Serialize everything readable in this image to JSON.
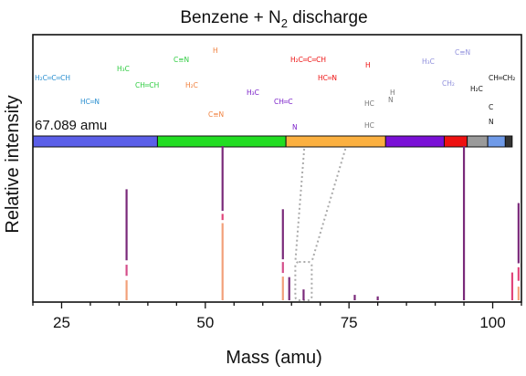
{
  "chart_data": {
    "type": "bar",
    "title": "Benzene + N",
    "title_subscript": "2",
    "title_suffix": " discharge",
    "xlabel": "Mass (amu)",
    "ylabel": "Relative intensity",
    "xlim": [
      20,
      105
    ],
    "ylim": [
      0,
      1
    ],
    "xticks": [
      25,
      50,
      75,
      100
    ],
    "highlight_label": "67.089 amu",
    "highlight_mass": 67.089,
    "composition_bar": [
      {
        "color": "#5b5fe8",
        "fraction": 0.255
      },
      {
        "color": "#22dd22",
        "fraction": 0.263
      },
      {
        "color": "#fbb040",
        "fraction": 0.204
      },
      {
        "color": "#7a10d6",
        "fraction": 0.12
      },
      {
        "color": "#ee1111",
        "fraction": 0.047
      },
      {
        "color": "#9a9a9a",
        "fraction": 0.042
      },
      {
        "color": "#6f9ae8",
        "fraction": 0.036
      },
      {
        "color": "#333333",
        "fraction": 0.014
      }
    ],
    "molecules": [
      {
        "color": "#2a8fd0",
        "lines": [
          {
            "text": "H₂C═C═CH",
            "dx": 0,
            "dy": 0
          },
          {
            "text": "HC═N",
            "dx": 50,
            "dy": 26
          }
        ]
      },
      {
        "color": "#2ecc40",
        "lines": [
          {
            "text": "H₃C",
            "dx": 0,
            "dy": 0
          },
          {
            "text": "CH═CH",
            "dx": 20,
            "dy": 18
          },
          {
            "text": "C≡N",
            "dx": 62,
            "dy": -10
          }
        ]
      },
      {
        "color": "#f07f3c",
        "lines": [
          {
            "text": "H",
            "dx": 30,
            "dy": -12
          },
          {
            "text": "H₂C",
            "dx": 0,
            "dy": 26
          },
          {
            "text": "C≡N",
            "dx": 25,
            "dy": 58
          }
        ]
      },
      {
        "color": "#7a1fc9",
        "lines": [
          {
            "text": "H₃C",
            "dx": 0,
            "dy": 0
          },
          {
            "text": "CH═C",
            "dx": 30,
            "dy": 10
          },
          {
            "text": "N",
            "dx": 50,
            "dy": 38
          }
        ]
      },
      {
        "color": "#ee1111",
        "lines": [
          {
            "text": "H₂C═C═CH",
            "dx": 0,
            "dy": 0
          },
          {
            "text": "HC═N",
            "dx": 30,
            "dy": 20
          },
          {
            "text": "H",
            "dx": 82,
            "dy": 6
          }
        ]
      },
      {
        "color": "#777777",
        "lines": [
          {
            "text": "H",
            "dx": 28,
            "dy": 0
          },
          {
            "text": "HC",
            "dx": 0,
            "dy": 12
          },
          {
            "text": "N",
            "dx": 26,
            "dy": 8
          },
          {
            "text": "HC",
            "dx": 0,
            "dy": 36
          }
        ]
      },
      {
        "color": "#8f8fdc",
        "lines": [
          {
            "text": "H₃C",
            "dx": 0,
            "dy": 0
          },
          {
            "text": "C≡N",
            "dx": 36,
            "dy": -10
          },
          {
            "text": "CH₂",
            "dx": 22,
            "dy": 24
          }
        ]
      },
      {
        "color": "#111111",
        "lines": [
          {
            "text": "CH═CH₂",
            "dx": 20,
            "dy": 0
          },
          {
            "text": "H₂C",
            "dx": 0,
            "dy": 12
          },
          {
            "text": "C",
            "dx": 20,
            "dy": 32
          },
          {
            "text": "N",
            "dx": 20,
            "dy": 48
          }
        ]
      }
    ],
    "peaks": [
      {
        "mass": 36.3,
        "height": 0.72,
        "segments": [
          {
            "color": "#7a2a7a",
            "from": 0.36,
            "to": 1.0
          },
          {
            "color": "#d44e8a",
            "from": 0.22,
            "to": 0.32
          },
          {
            "color": "#f2a07a",
            "from": 0.0,
            "to": 0.18
          }
        ]
      },
      {
        "mass": 53.0,
        "height": 1.0,
        "segments": [
          {
            "color": "#7a2a7a",
            "from": 0.58,
            "to": 1.0
          },
          {
            "color": "#e0457a",
            "from": 0.52,
            "to": 0.56
          },
          {
            "color": "#f2a07a",
            "from": 0.0,
            "to": 0.5
          }
        ]
      },
      {
        "mass": 63.5,
        "height": 0.59,
        "segments": [
          {
            "color": "#7a2a7a",
            "from": 0.45,
            "to": 1.0
          },
          {
            "color": "#d44e8a",
            "from": 0.3,
            "to": 0.42
          },
          {
            "color": "#f2a07a",
            "from": 0.0,
            "to": 0.26
          }
        ]
      },
      {
        "mass": 64.6,
        "height": 0.15,
        "segments": [
          {
            "color": "#7a2a7a",
            "from": 0.0,
            "to": 1.0
          }
        ]
      },
      {
        "mass": 67.1,
        "height": 0.07,
        "segments": [
          {
            "color": "#7a2a7a",
            "from": 0.0,
            "to": 1.0
          }
        ]
      },
      {
        "mass": 76.0,
        "height": 0.035,
        "segments": [
          {
            "color": "#7a2a7a",
            "from": 0.0,
            "to": 1.0
          }
        ]
      },
      {
        "mass": 80.0,
        "height": 0.025,
        "segments": [
          {
            "color": "#7a2a7a",
            "from": 0.0,
            "to": 1.0
          }
        ]
      },
      {
        "mass": 95.0,
        "height": 1.0,
        "segments": [
          {
            "color": "#7a2a7a",
            "from": 0.0,
            "to": 1.0
          }
        ]
      },
      {
        "mass": 103.4,
        "height": 0.18,
        "segments": [
          {
            "color": "#e0457a",
            "from": 0.0,
            "to": 1.0
          }
        ]
      },
      {
        "mass": 104.5,
        "height": 0.63,
        "segments": [
          {
            "color": "#7a2a7a",
            "from": 0.38,
            "to": 1.0
          },
          {
            "color": "#e0457a",
            "from": 0.2,
            "to": 0.34
          },
          {
            "color": "#f2a07a",
            "from": 0.0,
            "to": 0.14
          }
        ]
      }
    ]
  }
}
